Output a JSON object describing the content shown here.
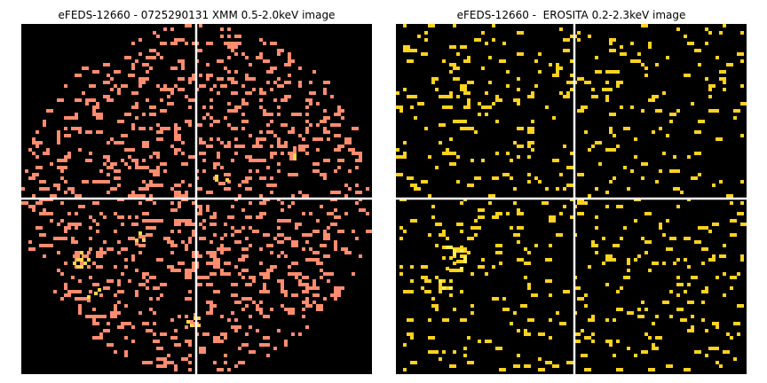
{
  "panels": [
    {
      "title": "eFEDS-12660 - 0725290131 XMM 0.5-2.0keV image",
      "colors": {
        "background": "#000000",
        "pixel": "#ff8c6e",
        "bright_pixel": "#ffd54a",
        "crosshair": "#ffffff"
      }
    },
    {
      "title": "eFEDS-12660 -  EROSITA 0.2-2.3keV image",
      "colors": {
        "background": "#000000",
        "pixel": "#ffd21e",
        "bright_pixel": "#ffee55",
        "crosshair": "#ffffff"
      }
    }
  ]
}
